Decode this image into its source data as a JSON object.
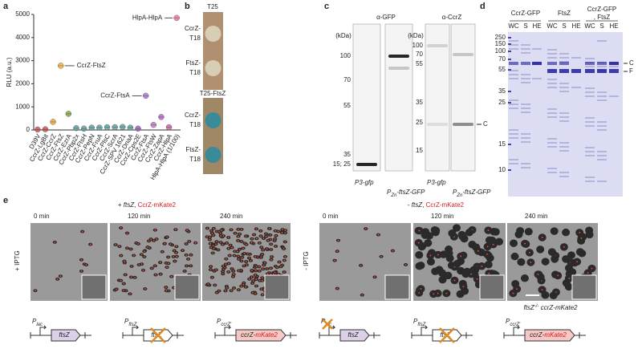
{
  "panel_labels": [
    "a",
    "b",
    "c",
    "d",
    "e"
  ],
  "chart_data": {
    "type": "scatter",
    "ylabel": "RLU (a.u.)",
    "categories": [
      "D39V",
      "CcrZ-LgBit",
      "CcrZ-CcrZ",
      "CcrZ-FtsZ",
      "CcrZ-EzrA",
      "CcrZ-Pbp2x",
      "CcrZ-FtsH",
      "CcrZ-PepN",
      "CcrZ-FruA",
      "CcrZ-PlsC",
      "CcrZ-ScrA",
      "CcrZ-SPV 1621",
      "CcrZ-DnaA",
      "CcrZ-Cps2E",
      "CcrZ-FtsA",
      "CcrZ-FtsW",
      "CcrZ-ZapA",
      "CcrZ-HlpA",
      "HlpA-HlpA (1/100)"
    ],
    "values": [
      20,
      30,
      350,
      2780,
      700,
      80,
      60,
      100,
      100,
      120,
      120,
      130,
      100,
      60,
      1480,
      220,
      560,
      120,
      4850
    ],
    "colors": [
      "#c0504d",
      "#c0504d",
      "#e0a030",
      "#f0a830",
      "#7fa040",
      "#5a9a9a",
      "#5a9a9a",
      "#5a9a9a",
      "#5a9a9a",
      "#5a9a9a",
      "#5a9a9a",
      "#5a9a9a",
      "#5a9a9a",
      "#9b59b6",
      "#a070d0",
      "#c070c0",
      "#b060c0",
      "#c060a0",
      "#e87090"
    ],
    "ylim": [
      0,
      5000
    ],
    "yticks": [
      0,
      1000,
      2000,
      3000,
      4000,
      5000
    ],
    "annotations": [
      "HlpA-HlpA",
      "CcrZ-FtsZ",
      "CcrZ-FtsA"
    ]
  },
  "panel_b": {
    "top_label": "T25",
    "bottom_label": "T25-FtsZ",
    "top_rows": [
      [
        "CcrZ-",
        "T18"
      ],
      [
        "FtsZ-",
        "T18"
      ]
    ],
    "bottom_rows": [
      [
        "CcrZ-",
        "T18"
      ],
      [
        "FtsZ-",
        "T18"
      ]
    ]
  },
  "panel_c": {
    "blots": [
      {
        "title": "α-GFP",
        "unit": "(kDa)",
        "ladder": [
          100,
          70,
          55,
          35,
          "15; 25"
        ],
        "lanes": [
          {
            "p": "P3-",
            "rest": "gfp"
          },
          {
            "p": "P",
            "sub": "Zn",
            "rest": "-ftsZ-GFP"
          }
        ]
      },
      {
        "title": "α-CcrZ",
        "unit": "(kDa)",
        "ladder": [
          100,
          70,
          55,
          35,
          25,
          15
        ],
        "marker": "C",
        "lanes": [
          {
            "p": "P3-",
            "rest": "gfp"
          },
          {
            "p": "P",
            "sub": "Zn",
            "rest": "-ftsZ-GFP"
          }
        ]
      }
    ]
  },
  "panel_d": {
    "groups": [
      {
        "name": [
          "CcrZ-GFP"
        ],
        "lanes": [
          "WC",
          "S",
          "HE"
        ]
      },
      {
        "name": [
          "FtsZ"
        ],
        "lanes": [
          "WC",
          "S",
          "HE"
        ]
      },
      {
        "name": [
          "CcrZ-GFP",
          ", FtsZ"
        ],
        "lanes": [
          "WC",
          "S",
          "HE"
        ]
      }
    ],
    "ladder": [
      250,
      150,
      100,
      70,
      55,
      35,
      25,
      15,
      10
    ],
    "markers": [
      "C",
      "F"
    ]
  },
  "panel_e": {
    "conditions": [
      {
        "sign": "+ ",
        "gene": "ftsZ",
        "sep": ", ",
        "fusion": "CcrZ-mKate2",
        "side": "+ IPTG",
        "times": [
          "0 min",
          "120 min",
          "240 min"
        ],
        "constructs": [
          {
            "p": "P",
            "sub": "lac",
            "gene": "ftsZ"
          },
          {
            "p": "P",
            "sub": "ftsZ",
            "gene": "ftsZ"
          },
          {
            "p": "P",
            "sub": "ccrZ'",
            "gene": "ccrZ-",
            "tag": "mKate2"
          }
        ]
      },
      {
        "sign": "- ",
        "gene": "ftsZ",
        "sep": ", ",
        "fusion": "CcrZ-mKate2",
        "side": "- IPTG",
        "times": [
          "0 min",
          "120 min",
          "240 min"
        ],
        "caption": {
          "gene": "ftsZ",
          "sup": "-/-",
          "rest": " ccrZ-mKate2"
        },
        "constructs": [
          {
            "p": "P",
            "sub": "lac",
            "gene": "ftsZ"
          },
          {
            "p": "P",
            "sub": "ftsZ",
            "gene": "ftsZ"
          },
          {
            "p": "P",
            "sub": "ccrZ'",
            "gene": "ccrZ-",
            "tag": "mKate2"
          }
        ]
      }
    ]
  }
}
